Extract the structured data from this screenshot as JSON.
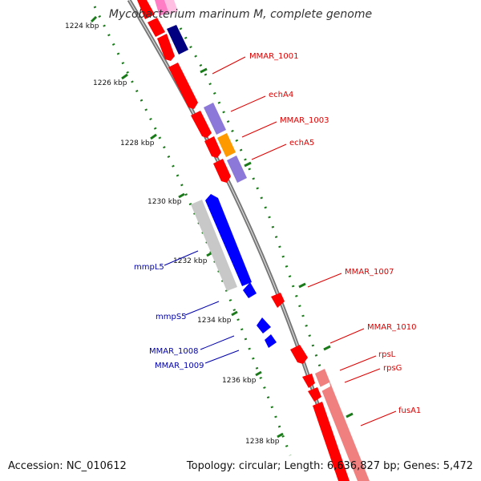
{
  "title": "Mycobacterium marinum M, complete genome",
  "footer": {
    "accession": "Accession: NC_010612",
    "summary": "Topology: circular; Length: 6,636,827 bp; Genes: 5,472"
  },
  "colors": {
    "backbone": "#777777",
    "scale_dots": "#1a7a1a",
    "forward_gene": "#ff0000",
    "reverse_gene": "#0000ff",
    "right_label": "#dd0000",
    "left_label": "#0000aa",
    "light_purple": "#8b78d8",
    "orange": "#ff9900",
    "navy": "#000080",
    "pink": "#ff66bb",
    "grey_bar": "#c8c8c8",
    "salmon": "#f08080"
  },
  "scale_ticks": [
    {
      "label": "1224 kbp"
    },
    {
      "label": "1226 kbp"
    },
    {
      "label": "1228 kbp"
    },
    {
      "label": "1230 kbp"
    },
    {
      "label": "1232 kbp"
    },
    {
      "label": "1234 kbp"
    },
    {
      "label": "1236 kbp"
    },
    {
      "label": "1238 kbp"
    }
  ],
  "right_labels": [
    "MMAR_1001",
    "echA4",
    "MMAR_1003",
    "echA5",
    "MMAR_1007",
    "MMAR_1010",
    "rpsL",
    "rpsG",
    "fusA1"
  ],
  "left_labels": [
    "mmpL5",
    "mmpS5",
    "MMAR_1008",
    "MMAR_1009"
  ]
}
